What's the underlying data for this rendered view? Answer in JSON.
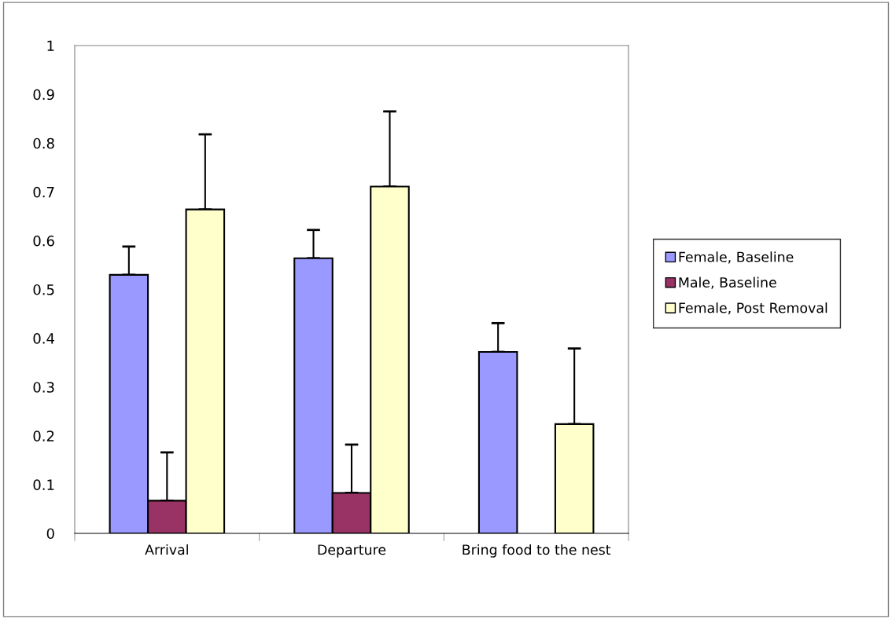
{
  "chart_data": {
    "type": "bar",
    "categories": [
      "Arrival",
      "Departure",
      "Bring food to the nest"
    ],
    "series": [
      {
        "name": "Female, Baseline",
        "color": "#9999ff",
        "values": [
          0.53,
          0.564,
          0.372
        ],
        "errors": [
          [
            0.53,
            0.588
          ],
          [
            0.564,
            0.622
          ],
          [
            0.372,
            0.431
          ]
        ]
      },
      {
        "name": "Male, Baseline",
        "color": "#993366",
        "values": [
          0.067,
          0.083,
          null
        ],
        "errors": [
          [
            0.067,
            0.166
          ],
          [
            0.083,
            0.182
          ],
          null
        ]
      },
      {
        "name": "Female, Post Removal",
        "color": "#ffffcc",
        "values": [
          0.664,
          0.711,
          0.224
        ],
        "errors": [
          [
            0.664,
            0.818
          ],
          [
            0.711,
            0.865
          ],
          [
            0.224,
            0.379
          ]
        ]
      }
    ],
    "ylim": [
      0,
      1
    ],
    "yticks": [
      0,
      0.1,
      0.2,
      0.3,
      0.4,
      0.5,
      0.6,
      0.7,
      0.8,
      0.9,
      1
    ],
    "grid": false,
    "legend": "right"
  }
}
